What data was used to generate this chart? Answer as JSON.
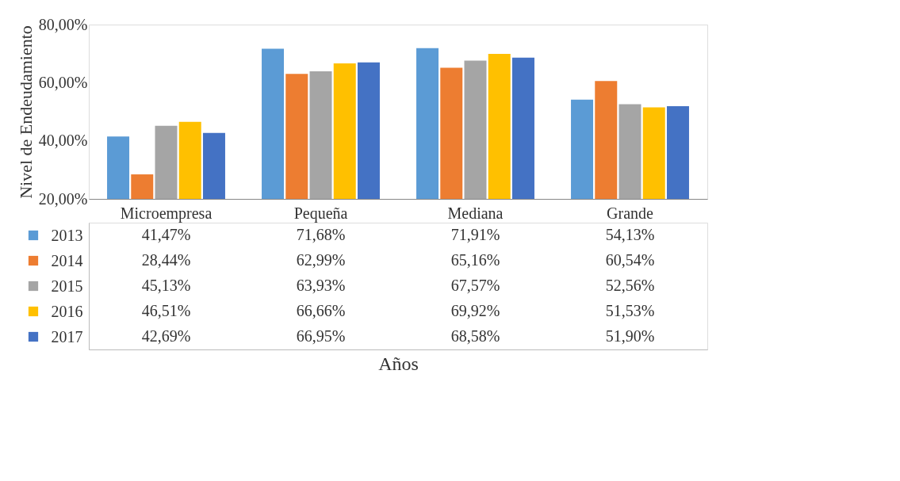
{
  "chart_data": {
    "type": "bar",
    "ylabel": "Nivel de Endeudamiento",
    "annotations": [
      "Años"
    ],
    "categories": [
      "Microempresa",
      "Pequeña",
      "Mediana",
      "Grande"
    ],
    "series": [
      {
        "name": "2013",
        "color": "#5b9bd5",
        "values": [
          41.47,
          71.68,
          71.91,
          54.13
        ],
        "value_labels": [
          "41,47%",
          "71,68%",
          "71,91%",
          "54,13%"
        ]
      },
      {
        "name": "2014",
        "color": "#ed7d31",
        "values": [
          28.44,
          62.99,
          65.16,
          60.54
        ],
        "value_labels": [
          "28,44%",
          "62,99%",
          "65,16%",
          "60,54%"
        ]
      },
      {
        "name": "2015",
        "color": "#a5a5a5",
        "values": [
          45.13,
          63.93,
          67.57,
          52.56
        ],
        "value_labels": [
          "45,13%",
          "63,93%",
          "67,57%",
          "52,56%"
        ]
      },
      {
        "name": "2016",
        "color": "#ffc000",
        "values": [
          46.51,
          66.66,
          69.92,
          51.53
        ],
        "value_labels": [
          "46,51%",
          "66,66%",
          "69,92%",
          "51,53%"
        ]
      },
      {
        "name": "2017",
        "color": "#4472c4",
        "values": [
          42.69,
          66.95,
          68.58,
          51.9
        ],
        "value_labels": [
          "42,69%",
          "66,95%",
          "68,58%",
          "51,90%"
        ]
      }
    ],
    "ylim": [
      20,
      80
    ],
    "yticks": [
      {
        "value": 20,
        "label": "20,00%"
      },
      {
        "value": 40,
        "label": "40,00%"
      },
      {
        "value": 60,
        "label": "60,00%"
      },
      {
        "value": 80,
        "label": "80,00%"
      }
    ],
    "legend": "bottom",
    "grid": false
  }
}
